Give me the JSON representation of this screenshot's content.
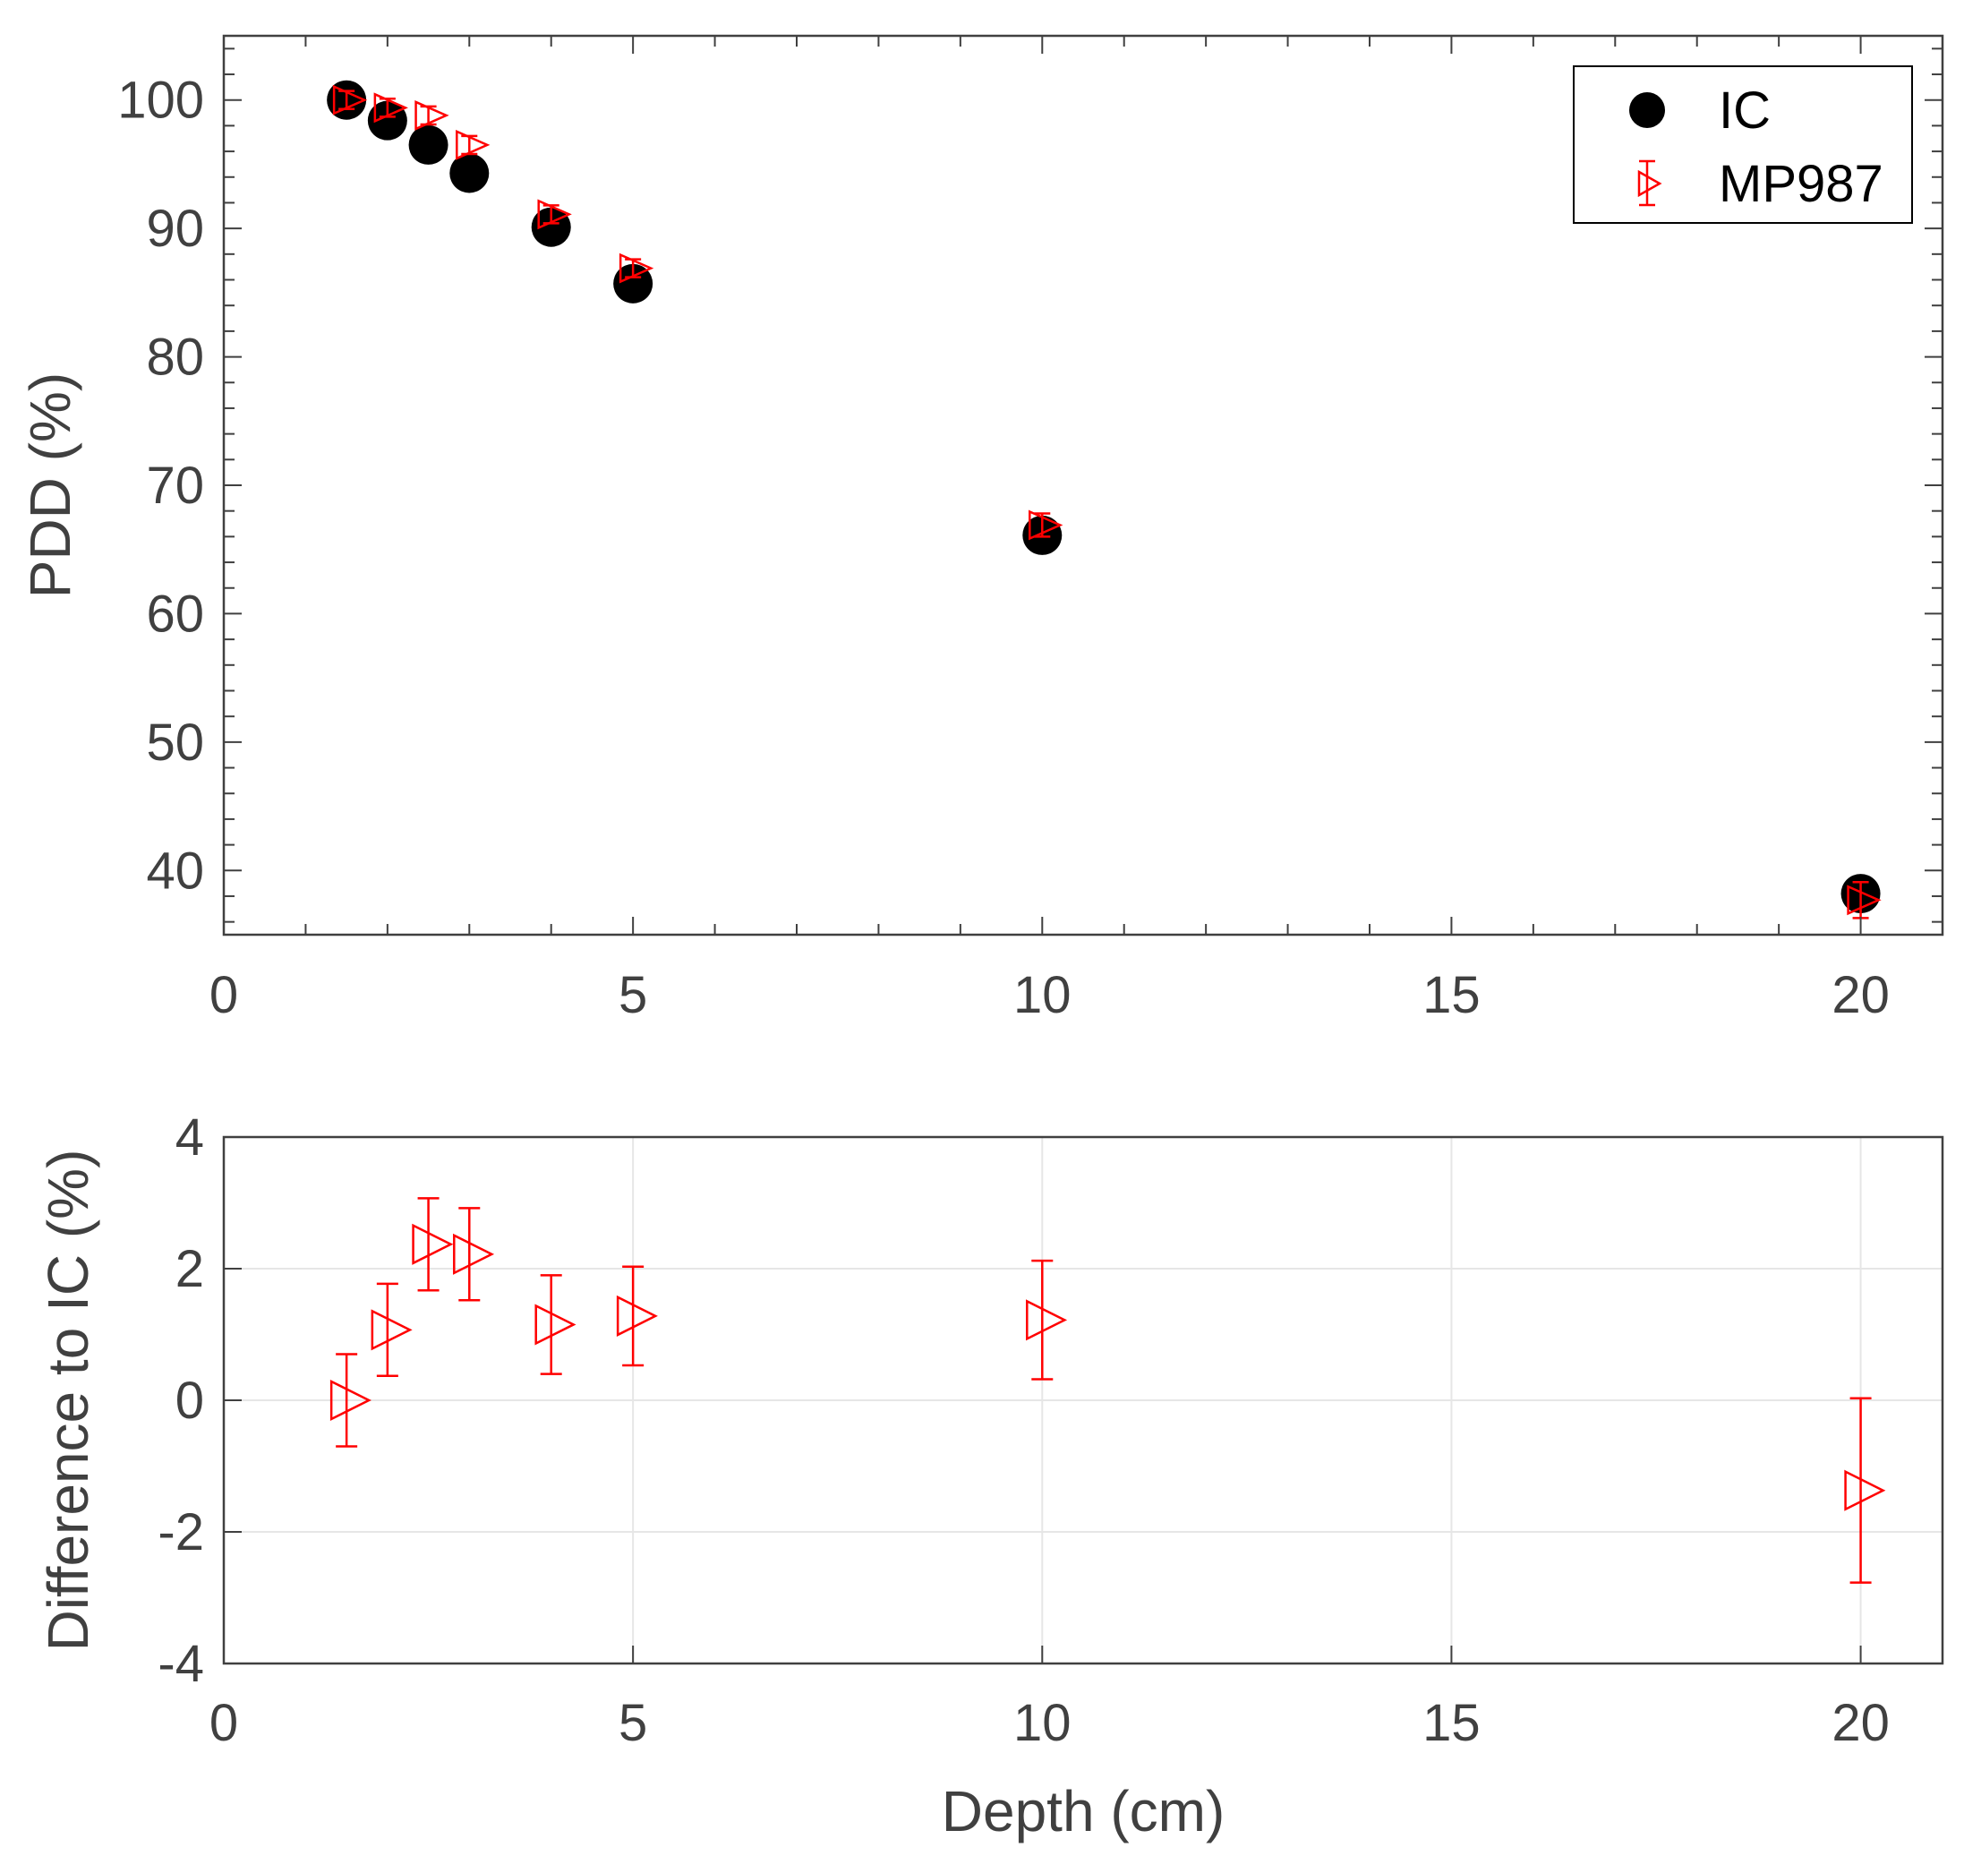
{
  "colors": {
    "ic_marker": "#000000",
    "mp987_marker": "#ff0000",
    "axes": "#404040",
    "grid": "#e6e6e6"
  },
  "chart_data": [
    {
      "type": "scatter",
      "id": "pdd",
      "title": "",
      "xlabel": "",
      "ylabel": "PDD (%)",
      "xlim": [
        0,
        21
      ],
      "ylim": [
        35,
        105
      ],
      "xticks": [
        "0",
        "5",
        "10",
        "15",
        "20"
      ],
      "yticks": [
        "40",
        "50",
        "60",
        "70",
        "80",
        "90",
        "100"
      ],
      "grid": false,
      "legend": {
        "position": "top-right",
        "entries": [
          "IC",
          "MP987"
        ]
      },
      "series": [
        {
          "name": "IC",
          "marker": "filled-circle",
          "x": [
            1.5,
            2,
            2.5,
            3,
            4,
            5,
            10,
            20
          ],
          "y": [
            100,
            98.4,
            96.5,
            94.3,
            90.1,
            85.7,
            66.1,
            38.2
          ]
        },
        {
          "name": "MP987",
          "marker": "open-right-triangle",
          "error_bars": true,
          "x": [
            1.5,
            2,
            2.5,
            3,
            4,
            5,
            10,
            20
          ],
          "y": [
            100,
            99.4,
            98.8,
            96.5,
            91.1,
            86.9,
            66.9,
            37.7
          ],
          "error": [
            0.7,
            0.7,
            0.7,
            0.7,
            0.7,
            0.7,
            0.9,
            1.4
          ]
        }
      ]
    },
    {
      "type": "scatter",
      "id": "difference",
      "title": "",
      "xlabel": "Depth (cm)",
      "ylabel": "Difference to IC (%)",
      "xlim": [
        0,
        21
      ],
      "ylim": [
        -4,
        4
      ],
      "xticks": [
        "0",
        "5",
        "10",
        "15",
        "20"
      ],
      "yticks": [
        "-4",
        "-2",
        "0",
        "2",
        "4"
      ],
      "grid": true,
      "series": [
        {
          "name": "MP987",
          "marker": "open-right-triangle",
          "x": [
            1.5,
            2,
            2.5,
            3,
            4,
            5,
            10,
            20
          ],
          "y": [
            0.0,
            1.07,
            2.37,
            2.22,
            1.15,
            1.28,
            1.22,
            -1.37
          ],
          "err_low": [
            0.7,
            0.7,
            0.7,
            0.7,
            0.75,
            0.75,
            0.9,
            1.4
          ],
          "err_high": [
            0.7,
            0.7,
            0.7,
            0.7,
            0.75,
            0.75,
            0.9,
            1.4
          ]
        }
      ]
    }
  ]
}
